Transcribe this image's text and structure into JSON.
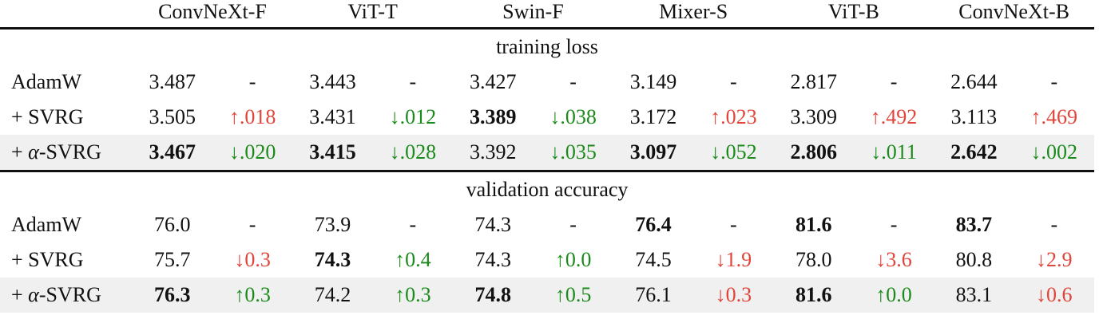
{
  "colors": {
    "red": "#e0443a",
    "green": "#1a8a1a",
    "highlight_row": "#f0f0f0"
  },
  "models": [
    "ConvNeXt-F",
    "ViT-T",
    "Swin-F",
    "Mixer-S",
    "ViT-B",
    "ConvNeXt-B"
  ],
  "sections": [
    {
      "title": "training loss",
      "rows": [
        {
          "prefix": "",
          "alpha": "",
          "name": "AdamW",
          "highlight": false,
          "cells": [
            {
              "value": "3.487",
              "bold": false,
              "delta": "-",
              "color": ""
            },
            {
              "value": "3.443",
              "bold": false,
              "delta": "-",
              "color": ""
            },
            {
              "value": "3.427",
              "bold": false,
              "delta": "-",
              "color": ""
            },
            {
              "value": "3.149",
              "bold": false,
              "delta": "-",
              "color": ""
            },
            {
              "value": "2.817",
              "bold": false,
              "delta": "-",
              "color": ""
            },
            {
              "value": "2.644",
              "bold": false,
              "delta": "-",
              "color": ""
            }
          ]
        },
        {
          "prefix": "+ ",
          "alpha": "",
          "name": "SVRG",
          "highlight": false,
          "cells": [
            {
              "value": "3.505",
              "bold": false,
              "delta": "↑.018",
              "color": "red"
            },
            {
              "value": "3.431",
              "bold": false,
              "delta": "↓.012",
              "color": "green"
            },
            {
              "value": "3.389",
              "bold": true,
              "delta": "↓.038",
              "color": "green"
            },
            {
              "value": "3.172",
              "bold": false,
              "delta": "↑.023",
              "color": "red"
            },
            {
              "value": "3.309",
              "bold": false,
              "delta": "↑.492",
              "color": "red"
            },
            {
              "value": "3.113",
              "bold": false,
              "delta": "↑.469",
              "color": "red"
            }
          ]
        },
        {
          "prefix": "+ ",
          "alpha": "α",
          "name": "-SVRG",
          "highlight": true,
          "cells": [
            {
              "value": "3.467",
              "bold": true,
              "delta": "↓.020",
              "color": "green"
            },
            {
              "value": "3.415",
              "bold": true,
              "delta": "↓.028",
              "color": "green"
            },
            {
              "value": "3.392",
              "bold": false,
              "delta": "↓.035",
              "color": "green"
            },
            {
              "value": "3.097",
              "bold": true,
              "delta": "↓.052",
              "color": "green"
            },
            {
              "value": "2.806",
              "bold": true,
              "delta": "↓.011",
              "color": "green"
            },
            {
              "value": "2.642",
              "bold": true,
              "delta": "↓.002",
              "color": "green"
            }
          ]
        }
      ]
    },
    {
      "title": "validation accuracy",
      "rows": [
        {
          "prefix": "",
          "alpha": "",
          "name": "AdamW",
          "highlight": false,
          "cells": [
            {
              "value": "76.0",
              "bold": false,
              "delta": "-",
              "color": ""
            },
            {
              "value": "73.9",
              "bold": false,
              "delta": "-",
              "color": ""
            },
            {
              "value": "74.3",
              "bold": false,
              "delta": "-",
              "color": ""
            },
            {
              "value": "76.4",
              "bold": true,
              "delta": "-",
              "color": ""
            },
            {
              "value": "81.6",
              "bold": true,
              "delta": "-",
              "color": ""
            },
            {
              "value": "83.7",
              "bold": true,
              "delta": "-",
              "color": ""
            }
          ]
        },
        {
          "prefix": "+ ",
          "alpha": "",
          "name": "SVRG",
          "highlight": false,
          "cells": [
            {
              "value": "75.7",
              "bold": false,
              "delta": "↓0.3",
              "color": "red"
            },
            {
              "value": "74.3",
              "bold": true,
              "delta": "↑0.4",
              "color": "green"
            },
            {
              "value": "74.3",
              "bold": false,
              "delta": "↑0.0",
              "color": "green"
            },
            {
              "value": "74.5",
              "bold": false,
              "delta": "↓1.9",
              "color": "red"
            },
            {
              "value": "78.0",
              "bold": false,
              "delta": "↓3.6",
              "color": "red"
            },
            {
              "value": "80.8",
              "bold": false,
              "delta": "↓2.9",
              "color": "red"
            }
          ]
        },
        {
          "prefix": "+ ",
          "alpha": "α",
          "name": "-SVRG",
          "highlight": true,
          "cells": [
            {
              "value": "76.3",
              "bold": true,
              "delta": "↑0.3",
              "color": "green"
            },
            {
              "value": "74.2",
              "bold": false,
              "delta": "↑0.3",
              "color": "green"
            },
            {
              "value": "74.8",
              "bold": true,
              "delta": "↑0.5",
              "color": "green"
            },
            {
              "value": "76.1",
              "bold": false,
              "delta": "↓0.3",
              "color": "red"
            },
            {
              "value": "81.6",
              "bold": true,
              "delta": "↑0.0",
              "color": "green"
            },
            {
              "value": "83.1",
              "bold": false,
              "delta": "↓0.6",
              "color": "red"
            }
          ]
        }
      ]
    }
  ]
}
